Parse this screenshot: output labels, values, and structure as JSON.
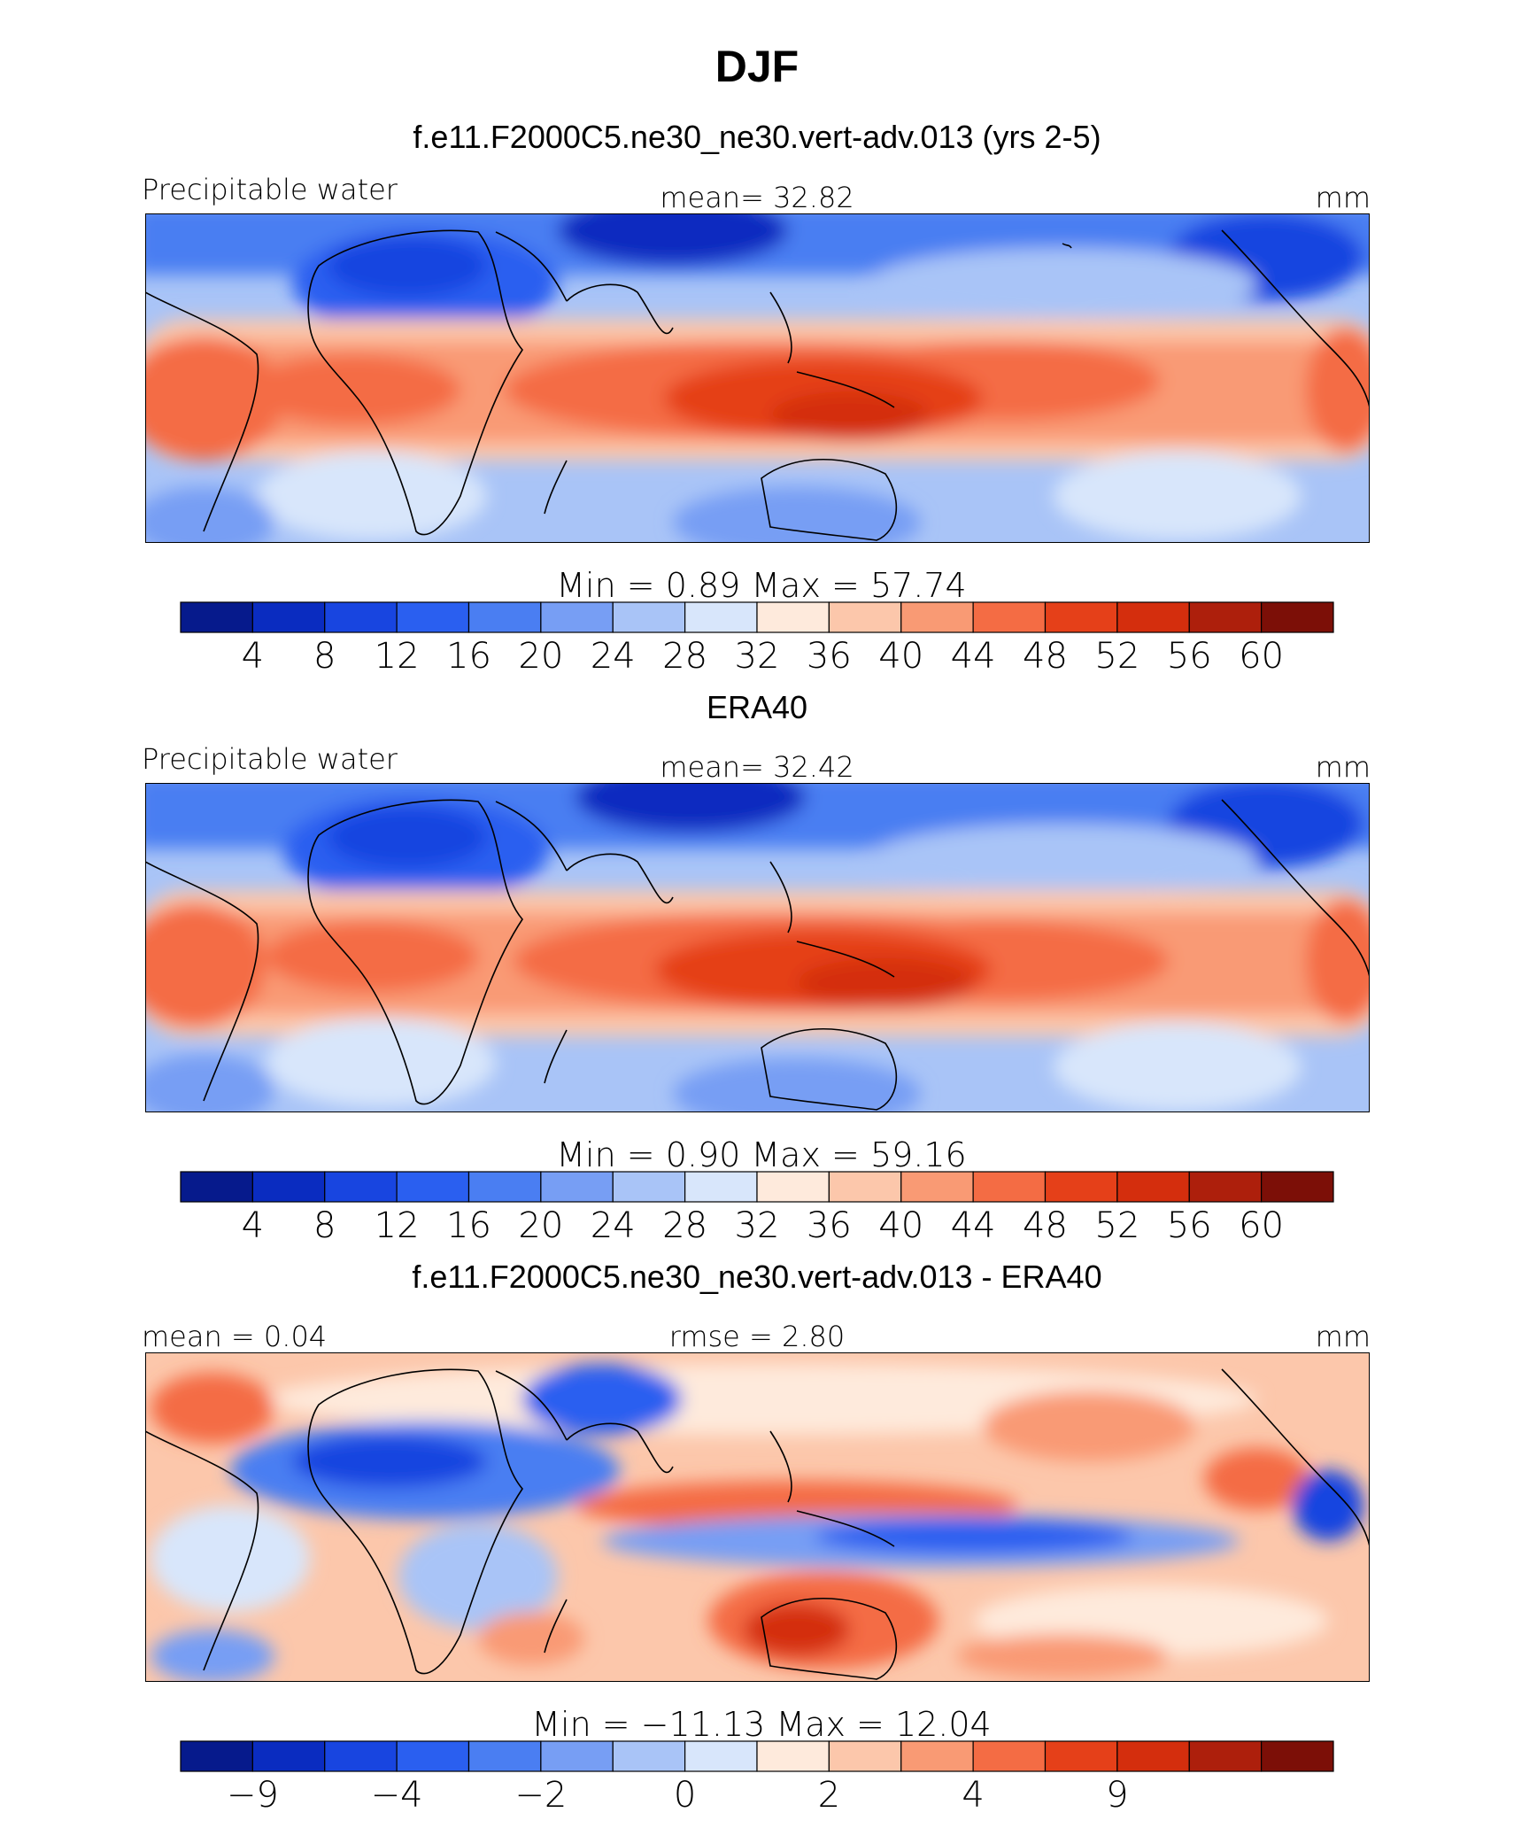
{
  "page_title": "DJF",
  "colorbar_colors": [
    "#061a8c",
    "#0a2cc0",
    "#1845e0",
    "#2a5ff0",
    "#4a7ef2",
    "#779ef4",
    "#a9c4f7",
    "#d8e6fb",
    "#feeadc",
    "#fcc7ab",
    "#f99a74",
    "#f46c44",
    "#e54019",
    "#d42e0d",
    "#ad1f0c",
    "#7c0f07"
  ],
  "chart_data": [
    {
      "type": "heatmap",
      "title": "f.e11.F2000C5.ne30_ne30.vert-adv.013 (yrs 2-5)",
      "left_label": "Precipitable water",
      "center_label": "mean=   32.82",
      "units": "mm",
      "min_max": "Min  =    0.89  Max  =   57.74",
      "levels": [
        "4",
        "8",
        "12",
        "16",
        "20",
        "24",
        "28",
        "32",
        "36",
        "40",
        "44",
        "48",
        "52",
        "56",
        "60"
      ],
      "mean": 32.82,
      "min": 0.89,
      "max": 57.74
    },
    {
      "type": "heatmap",
      "title": "ERA40",
      "left_label": "Precipitable water",
      "center_label": "mean=   32.42",
      "units": "mm",
      "min_max": "Min  =    0.90  Max  =   59.16",
      "levels": [
        "4",
        "8",
        "12",
        "16",
        "20",
        "24",
        "28",
        "32",
        "36",
        "40",
        "44",
        "48",
        "52",
        "56",
        "60"
      ],
      "mean": 32.42,
      "min": 0.9,
      "max": 59.16
    },
    {
      "type": "heatmap",
      "title": "f.e11.F2000C5.ne30_ne30.vert-adv.013 - ERA40",
      "left_label": "mean  =    0.04",
      "center_label": "rmse  =    2.80",
      "units": "mm",
      "min_max": "Min  = −11.13  Max  =   12.04",
      "levels": [
        "−9",
        "",
        "−4",
        "",
        "−2",
        "",
        "0",
        "",
        "2",
        "",
        "4",
        "",
        "9",
        "",
        ""
      ],
      "mean": 0.04,
      "rmse": 2.8,
      "min": -11.13,
      "max": 12.04
    }
  ]
}
